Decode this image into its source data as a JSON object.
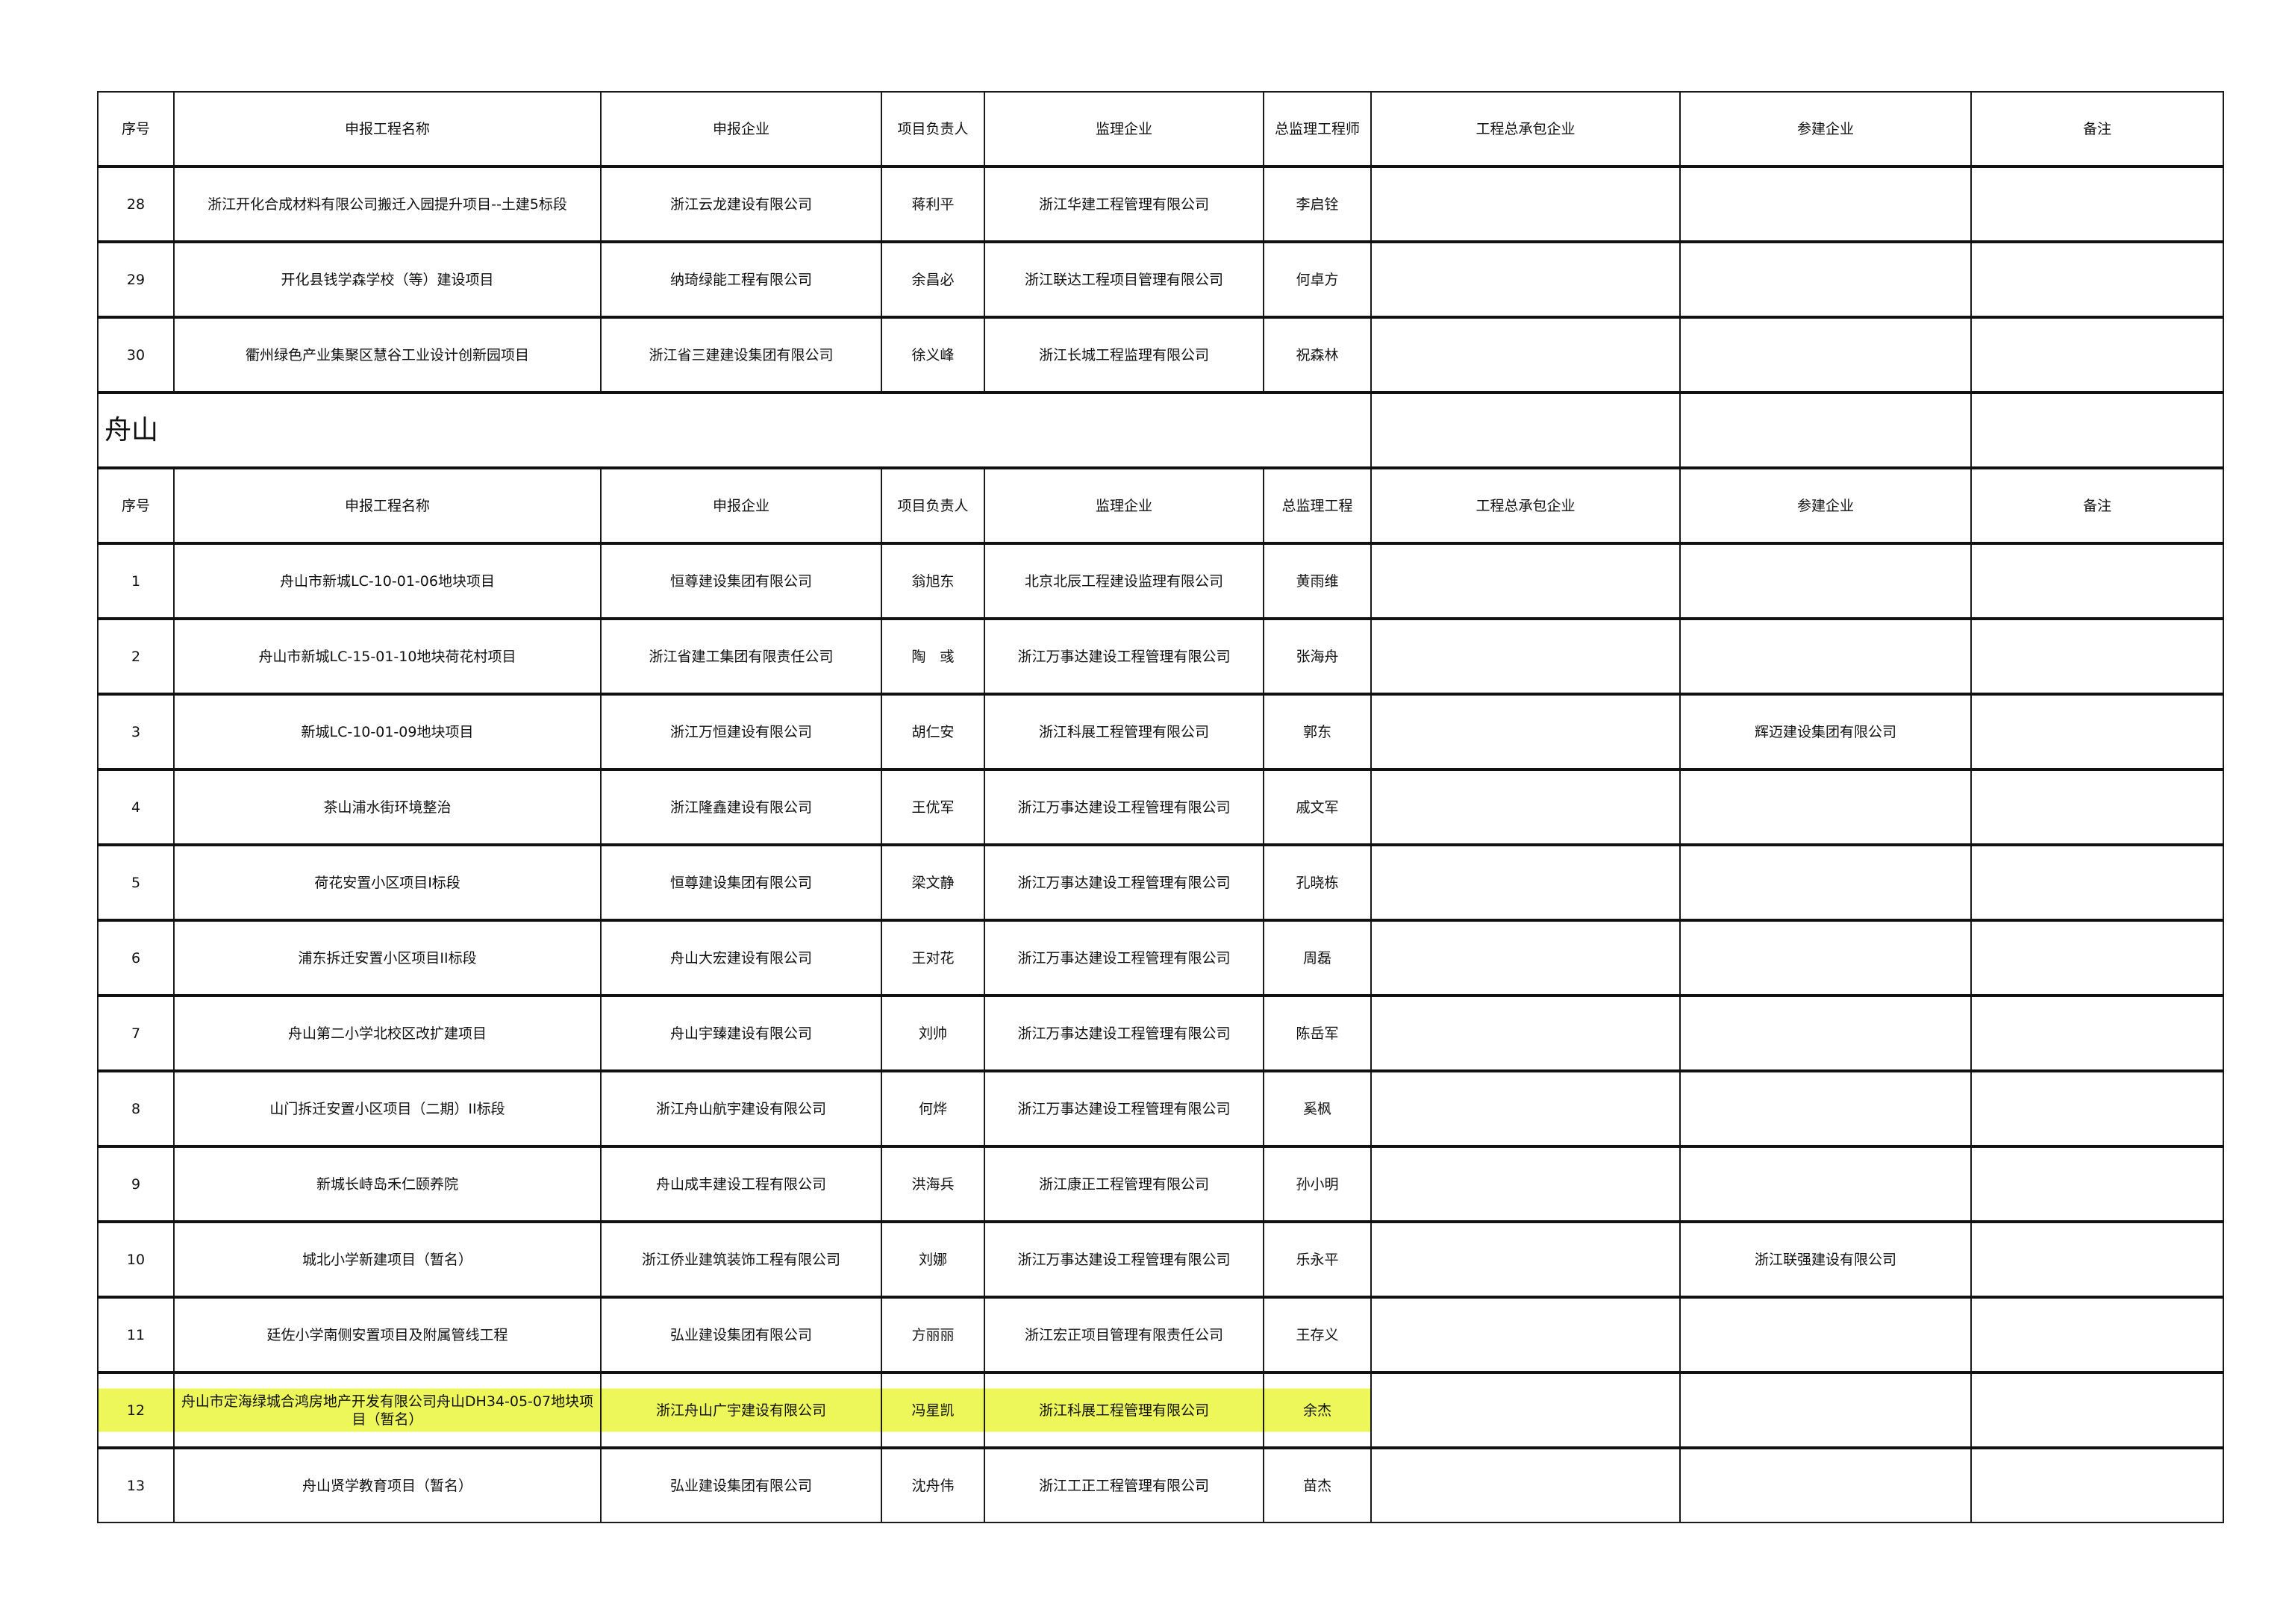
{
  "header1": [
    "序号",
    "申报工程名称",
    "申报企业",
    "项目负责人",
    "监理企业",
    "总监理工程师",
    "工程总承包企业",
    "参建企业",
    "备注"
  ],
  "rows_prev": [
    [
      "28",
      "浙江开化合成材料有限公司搬迁入园提升项目--土建5标段",
      "浙江云龙建设有限公司",
      "蒋利平",
      "浙江华建工程管理有限公司",
      "李启铨",
      "",
      "",
      ""
    ],
    [
      "29",
      "开化县钱学森学校（等）建设项目",
      "纳琦绿能工程有限公司",
      "余昌必",
      "浙江联达工程项目管理有限公司",
      "何卓方",
      "",
      "",
      ""
    ],
    [
      "30",
      "衢州绿色产业集聚区慧谷工业设计创新园项目",
      "浙江省三建建设集团有限公司",
      "徐义峰",
      "浙江长城工程监理有限公司",
      "祝森林",
      "",
      "",
      ""
    ]
  ],
  "section_title": "舟山",
  "header2": [
    "序号",
    "申报工程名称",
    "申报企业",
    "项目负责人",
    "监理企业",
    "总监理工程",
    "工程总承包企业",
    "参建企业",
    "备注"
  ],
  "rows": [
    [
      "1",
      "舟山市新城LC-10-01-06地块项目",
      "恒尊建设集团有限公司",
      "翁旭东",
      "北京北辰工程建设监理有限公司",
      "黄雨维",
      "",
      "",
      ""
    ],
    [
      "2",
      "舟山市新城LC-15-01-10地块荷花村项目",
      "浙江省建工集团有限责任公司",
      "陶　彧",
      "浙江万事达建设工程管理有限公司",
      "张海舟",
      "",
      "",
      ""
    ],
    [
      "3",
      "新城LC-10-01-09地块项目",
      "浙江万恒建设有限公司",
      "胡仁安",
      "浙江科展工程管理有限公司",
      "郭东",
      "",
      "辉迈建设集团有限公司",
      ""
    ],
    [
      "4",
      "茶山浦水街环境整治",
      "浙江隆鑫建设有限公司",
      "王优军",
      "浙江万事达建设工程管理有限公司",
      "戚文军",
      "",
      "",
      ""
    ],
    [
      "5",
      "荷花安置小区项目I标段",
      "恒尊建设集团有限公司",
      "梁文静",
      "浙江万事达建设工程管理有限公司",
      "孔晓栋",
      "",
      "",
      ""
    ],
    [
      "6",
      "浦东拆迁安置小区项目II标段",
      "舟山大宏建设有限公司",
      "王对花",
      "浙江万事达建设工程管理有限公司",
      "周磊",
      "",
      "",
      ""
    ],
    [
      "7",
      "舟山第二小学北校区改扩建项目",
      "舟山宇臻建设有限公司",
      "刘帅",
      "浙江万事达建设工程管理有限公司",
      "陈岳军",
      "",
      "",
      ""
    ],
    [
      "8",
      "山门拆迁安置小区项目（二期）II标段",
      "浙江舟山航宇建设有限公司",
      "何烨",
      "浙江万事达建设工程管理有限公司",
      "奚枫",
      "",
      "",
      ""
    ],
    [
      "9",
      "新城长峙岛禾仁颐养院",
      "舟山成丰建设工程有限公司",
      "洪海兵",
      "浙江康正工程管理有限公司",
      "孙小明",
      "",
      "",
      ""
    ],
    [
      "10",
      "城北小学新建项目（暂名）",
      "浙江侨业建筑装饰工程有限公司",
      "刘娜",
      "浙江万事达建设工程管理有限公司",
      "乐永平",
      "",
      "浙江联强建设有限公司",
      ""
    ],
    [
      "11",
      "廷佐小学南侧安置项目及附属管线工程",
      "弘业建设集团有限公司",
      "方丽丽",
      "浙江宏正项目管理有限责任公司",
      "王存义",
      "",
      "",
      ""
    ],
    [
      "12",
      "舟山市定海绿城合鸿房地产开发有限公司舟山DH34-05-07地块项目（暂名）",
      "浙江舟山广宇建设有限公司",
      "冯星凯",
      "浙江科展工程管理有限公司",
      "余杰",
      "",
      "",
      ""
    ],
    [
      "13",
      "舟山贤学教育项目（暂名）",
      "弘业建设集团有限公司",
      "沈舟伟",
      "浙江工正工程管理有限公司",
      "苗杰",
      "",
      "",
      ""
    ]
  ],
  "highlight_row": "12",
  "highlight_color": "#eef75a"
}
